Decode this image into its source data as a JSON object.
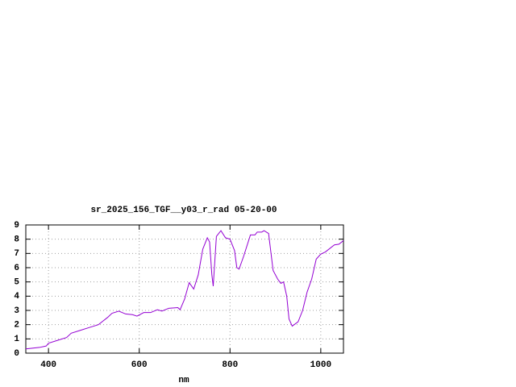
{
  "chart_data": {
    "type": "line",
    "title": "sr_2025_156_TGF__y03_r_rad 05-20-00",
    "x_label": "nm",
    "x": [
      350,
      380,
      395,
      400,
      420,
      440,
      450,
      470,
      490,
      510,
      530,
      540,
      555,
      570,
      585,
      595,
      610,
      625,
      640,
      650,
      665,
      685,
      690,
      700,
      710,
      720,
      730,
      740,
      750,
      755,
      760,
      763,
      770,
      780,
      790,
      800,
      810,
      815,
      820,
      830,
      845,
      855,
      860,
      870,
      875,
      885,
      895,
      905,
      912,
      918,
      925,
      930,
      937,
      950,
      960,
      970,
      980,
      990,
      1000,
      1010,
      1030,
      1040,
      1050
    ],
    "values": [
      0.3,
      0.4,
      0.5,
      0.7,
      0.9,
      1.1,
      1.4,
      1.6,
      1.8,
      2.0,
      2.5,
      2.8,
      2.95,
      2.75,
      2.7,
      2.6,
      2.85,
      2.85,
      3.05,
      2.95,
      3.15,
      3.2,
      3.05,
      3.8,
      4.95,
      4.5,
      5.5,
      7.3,
      8.1,
      7.8,
      5.5,
      4.7,
      8.2,
      8.6,
      8.1,
      8.0,
      7.2,
      6.0,
      5.9,
      6.8,
      8.3,
      8.3,
      8.5,
      8.5,
      8.6,
      8.4,
      5.8,
      5.2,
      4.9,
      5.0,
      4.0,
      2.4,
      1.9,
      2.2,
      3.0,
      4.3,
      5.2,
      6.6,
      6.95,
      7.1,
      7.6,
      7.65,
      7.9
    ],
    "color": "#9400d3",
    "xlim": [
      350,
      1050
    ],
    "xticks": [
      400,
      600,
      800,
      1000
    ],
    "ylim": [
      0,
      9
    ],
    "yticks": [
      0,
      1,
      2,
      3,
      4,
      5,
      6,
      7,
      8,
      9
    ],
    "grid": true
  }
}
